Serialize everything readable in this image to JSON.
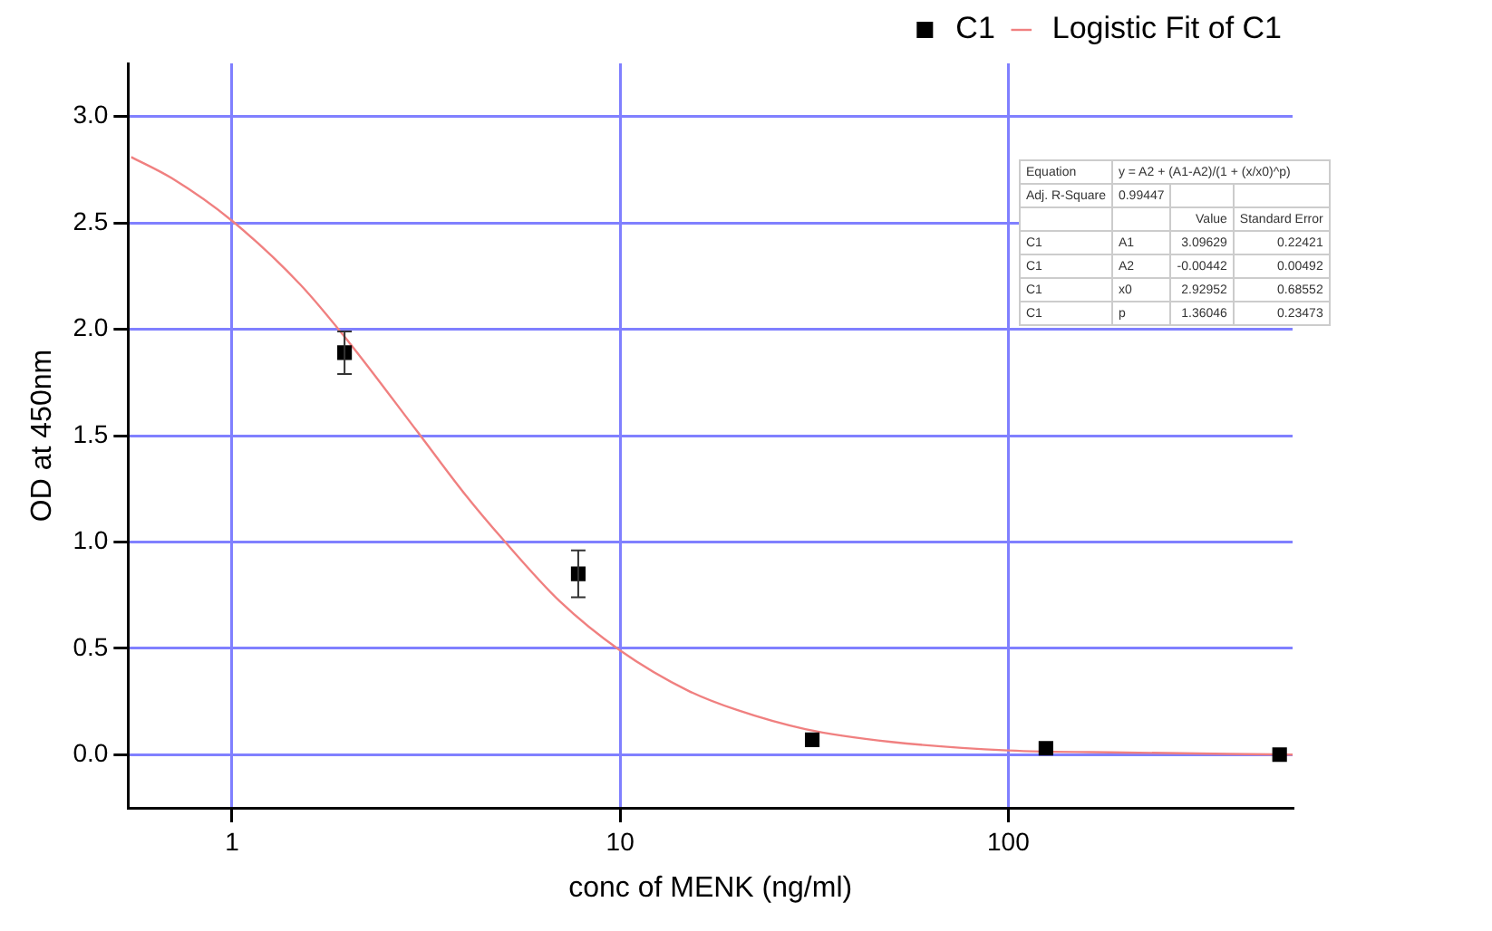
{
  "chart_data": {
    "type": "scatter",
    "xlabel": "conc of MENK (ng/ml)",
    "ylabel": "OD at 450nm",
    "log": "x",
    "xlim": [
      0.54,
      540
    ],
    "xticks": [
      1,
      10,
      100
    ],
    "ylim": [
      -0.25,
      3.25
    ],
    "yticks": [
      {
        "value": 0,
        "label": "0.0"
      },
      {
        "value": 0.5,
        "label": "0.5"
      },
      {
        "value": 1,
        "label": "1.0"
      },
      {
        "value": 1.5,
        "label": "1.5"
      },
      {
        "value": 2,
        "label": "2.0"
      },
      {
        "value": 2.5,
        "label": "2.5"
      },
      {
        "value": 3,
        "label": "3.0"
      }
    ],
    "grid": true,
    "legend": "top right",
    "marker": "square",
    "series": [
      {
        "name": "C1",
        "color": "#000000",
        "x": [
          1.95,
          7.8,
          31.25,
          125,
          500
        ],
        "values": [
          1.89,
          0.85,
          0.07,
          0.03,
          0.0
        ],
        "errors": [
          0.1,
          0.11,
          null,
          null,
          null
        ]
      },
      {
        "name": "Logistic Fit of C1",
        "type": "line",
        "color": "#f08080",
        "marker": "none",
        "x": [
          0.55,
          0.7,
          1,
          1.5,
          2,
          3,
          4,
          5,
          7,
          10,
          15,
          20,
          30,
          50,
          100,
          200,
          540
        ],
        "values": [
          2.81,
          2.71,
          2.51,
          2.21,
          1.94,
          1.52,
          1.22,
          1.01,
          0.72,
          0.49,
          0.3,
          0.21,
          0.12,
          0.06,
          0.02,
          0.01,
          0.0
        ]
      }
    ],
    "annotations": [
      "Equation",
      "y = A2 + (A1-A2)/(1 + (x/x0)^p)",
      "Adj. R-Square",
      "0.99447",
      "Value",
      "Standard Error",
      "C1",
      "A1",
      "3.09629",
      "0.22421",
      "C1",
      "A2",
      "-0.00442",
      "0.00492",
      "C1",
      "x0",
      "2.92952",
      "0.68552",
      "C1",
      "p",
      "1.36046",
      "0.23473"
    ]
  }
}
